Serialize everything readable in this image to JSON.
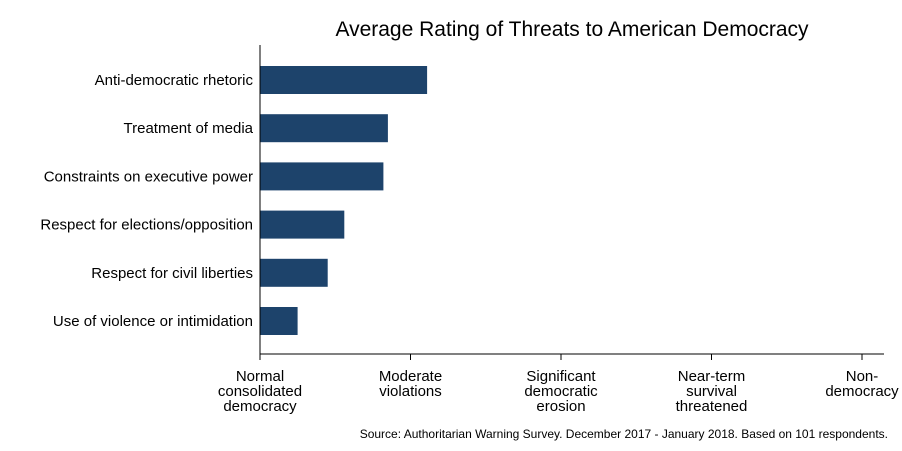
{
  "chart_data": {
    "type": "bar",
    "orientation": "horizontal",
    "title": "Average Rating of Threats to American Democracy",
    "categories": [
      "Anti-democratic rhetoric",
      "Treatment of media",
      "Constraints on executive power",
      "Respect for elections/opposition",
      "Respect for civil liberties",
      "Use of violence or intimidation"
    ],
    "values": [
      2.11,
      1.85,
      1.82,
      1.56,
      1.45,
      1.25
    ],
    "xlim": [
      1,
      5
    ],
    "x_ticks": [
      {
        "value": 1,
        "lines": [
          "Normal",
          "consolidated",
          "democracy"
        ]
      },
      {
        "value": 2,
        "lines": [
          "Moderate",
          "violations"
        ]
      },
      {
        "value": 3,
        "lines": [
          "Significant",
          "democratic",
          "erosion"
        ]
      },
      {
        "value": 4,
        "lines": [
          "Near-term",
          "survival",
          "threatened"
        ]
      },
      {
        "value": 5,
        "lines": [
          "Non-",
          "democracy"
        ]
      }
    ],
    "xlabel": "",
    "ylabel": "",
    "grid": false,
    "bar_color": "#1d436b",
    "source": "Source: Authoritarian Warning Survey. December 2017 - January 2018. Based on 101 respondents."
  }
}
